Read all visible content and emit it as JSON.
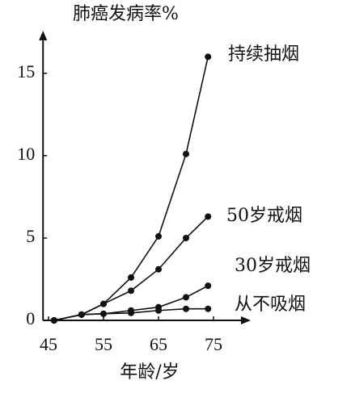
{
  "chart_data": {
    "type": "line",
    "title": "肺癌发病率%",
    "x_label": "年龄/岁",
    "x": [
      46,
      51,
      55,
      60,
      65,
      70,
      74
    ],
    "series": [
      {
        "name": "持续抽烟",
        "color": "#111111",
        "values": [
          0,
          0.35,
          1.0,
          2.6,
          5.1,
          10.1,
          16
        ]
      },
      {
        "name": "50岁戒烟",
        "color": "#111111",
        "values": [
          0,
          0.35,
          1.0,
          1.8,
          3.1,
          5.0,
          6.3
        ]
      },
      {
        "name": "30岁戒烟",
        "color": "#111111",
        "values": [
          0,
          0.35,
          0.4,
          0.6,
          0.8,
          1.4,
          2.1
        ]
      },
      {
        "name": "从不吸烟",
        "color": "#111111",
        "values": [
          0,
          0.35,
          0.4,
          0.45,
          0.6,
          0.7,
          0.7
        ]
      }
    ],
    "xlim": [
      44,
      80
    ],
    "ylim": [
      0,
      17
    ],
    "xticks": [
      45,
      55,
      65,
      75
    ],
    "yticks": [
      0,
      5,
      10,
      15
    ]
  }
}
